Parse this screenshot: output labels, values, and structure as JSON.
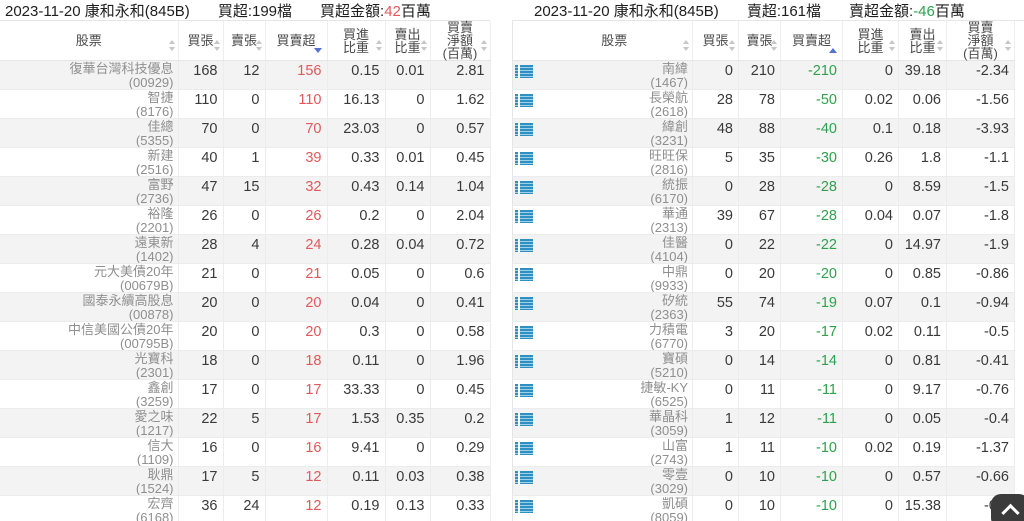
{
  "columns": {
    "stock": "股票",
    "buy": "買張",
    "sell": "賣張",
    "net": "買賣超",
    "buy_ratio": "買進\n比重",
    "sell_ratio": "賣出\n比重",
    "net_amt": "買賣\n淨額\n(百萬)"
  },
  "panels": {
    "left": {
      "title": {
        "date_branch": "2023-11-20 康和永和(845B)",
        "count": "買超:199檔",
        "amount_label": "買超金額:",
        "amount_value": "42",
        "amount_unit": "百萬"
      },
      "sort": {
        "column": "買賣超",
        "direction": "desc"
      },
      "rows": [
        {
          "name": "復華台灣科技優息",
          "code": "(00929)",
          "buy": "168",
          "sell": "12",
          "net": "156",
          "buy_ratio": "0.15",
          "sell_ratio": "0.01",
          "net_amt": "2.81"
        },
        {
          "name": "智捷",
          "code": "(8176)",
          "buy": "110",
          "sell": "0",
          "net": "110",
          "buy_ratio": "16.13",
          "sell_ratio": "0",
          "net_amt": "1.62"
        },
        {
          "name": "佳總",
          "code": "(5355)",
          "buy": "70",
          "sell": "0",
          "net": "70",
          "buy_ratio": "23.03",
          "sell_ratio": "0",
          "net_amt": "0.57"
        },
        {
          "name": "新建",
          "code": "(2516)",
          "buy": "40",
          "sell": "1",
          "net": "39",
          "buy_ratio": "0.33",
          "sell_ratio": "0.01",
          "net_amt": "0.45"
        },
        {
          "name": "富野",
          "code": "(2736)",
          "buy": "47",
          "sell": "15",
          "net": "32",
          "buy_ratio": "0.43",
          "sell_ratio": "0.14",
          "net_amt": "1.04"
        },
        {
          "name": "裕隆",
          "code": "(2201)",
          "buy": "26",
          "sell": "0",
          "net": "26",
          "buy_ratio": "0.2",
          "sell_ratio": "0",
          "net_amt": "2.04"
        },
        {
          "name": "遠東新",
          "code": "(1402)",
          "buy": "28",
          "sell": "4",
          "net": "24",
          "buy_ratio": "0.28",
          "sell_ratio": "0.04",
          "net_amt": "0.72"
        },
        {
          "name": "元大美債20年",
          "code": "(00679B)",
          "buy": "21",
          "sell": "0",
          "net": "21",
          "buy_ratio": "0.05",
          "sell_ratio": "0",
          "net_amt": "0.6"
        },
        {
          "name": "國泰永續高股息",
          "code": "(00878)",
          "buy": "20",
          "sell": "0",
          "net": "20",
          "buy_ratio": "0.04",
          "sell_ratio": "0",
          "net_amt": "0.41"
        },
        {
          "name": "中信美國公債20年",
          "code": "(00795B)",
          "buy": "20",
          "sell": "0",
          "net": "20",
          "buy_ratio": "0.3",
          "sell_ratio": "0",
          "net_amt": "0.58"
        },
        {
          "name": "光寶科",
          "code": "(2301)",
          "buy": "18",
          "sell": "0",
          "net": "18",
          "buy_ratio": "0.11",
          "sell_ratio": "0",
          "net_amt": "1.96"
        },
        {
          "name": "鑫創",
          "code": "(3259)",
          "buy": "17",
          "sell": "0",
          "net": "17",
          "buy_ratio": "33.33",
          "sell_ratio": "0",
          "net_amt": "0.45"
        },
        {
          "name": "愛之味",
          "code": "(1217)",
          "buy": "22",
          "sell": "5",
          "net": "17",
          "buy_ratio": "1.53",
          "sell_ratio": "0.35",
          "net_amt": "0.2"
        },
        {
          "name": "信大",
          "code": "(1109)",
          "buy": "16",
          "sell": "0",
          "net": "16",
          "buy_ratio": "9.41",
          "sell_ratio": "0",
          "net_amt": "0.29"
        },
        {
          "name": "耿鼎",
          "code": "(1524)",
          "buy": "17",
          "sell": "5",
          "net": "12",
          "buy_ratio": "0.11",
          "sell_ratio": "0.03",
          "net_amt": "0.38"
        },
        {
          "name": "宏齊",
          "code": "(6168)",
          "buy": "36",
          "sell": "24",
          "net": "12",
          "buy_ratio": "0.19",
          "sell_ratio": "0.13",
          "net_amt": "0.33"
        }
      ]
    },
    "right": {
      "title": {
        "date_branch": "2023-11-20 康和永和(845B)",
        "count": "賣超:161檔",
        "amount_label": "賣超金額:",
        "amount_value": "-46",
        "amount_unit": "百萬"
      },
      "sort": {
        "column": "買賣超",
        "direction": "asc"
      },
      "rows": [
        {
          "name": "南緯",
          "code": "(1467)",
          "buy": "0",
          "sell": "210",
          "net": "-210",
          "buy_ratio": "0",
          "sell_ratio": "39.18",
          "net_amt": "-2.34"
        },
        {
          "name": "長榮航",
          "code": "(2618)",
          "buy": "28",
          "sell": "78",
          "net": "-50",
          "buy_ratio": "0.02",
          "sell_ratio": "0.06",
          "net_amt": "-1.56"
        },
        {
          "name": "緯創",
          "code": "(3231)",
          "buy": "48",
          "sell": "88",
          "net": "-40",
          "buy_ratio": "0.1",
          "sell_ratio": "0.18",
          "net_amt": "-3.93"
        },
        {
          "name": "旺旺保",
          "code": "(2816)",
          "buy": "5",
          "sell": "35",
          "net": "-30",
          "buy_ratio": "0.26",
          "sell_ratio": "1.8",
          "net_amt": "-1.1"
        },
        {
          "name": "統振",
          "code": "(6170)",
          "buy": "0",
          "sell": "28",
          "net": "-28",
          "buy_ratio": "0",
          "sell_ratio": "8.59",
          "net_amt": "-1.5"
        },
        {
          "name": "華通",
          "code": "(2313)",
          "buy": "39",
          "sell": "67",
          "net": "-28",
          "buy_ratio": "0.04",
          "sell_ratio": "0.07",
          "net_amt": "-1.8"
        },
        {
          "name": "佳醫",
          "code": "(4104)",
          "buy": "0",
          "sell": "22",
          "net": "-22",
          "buy_ratio": "0",
          "sell_ratio": "14.97",
          "net_amt": "-1.9"
        },
        {
          "name": "中鼎",
          "code": "(9933)",
          "buy": "0",
          "sell": "20",
          "net": "-20",
          "buy_ratio": "0",
          "sell_ratio": "0.85",
          "net_amt": "-0.86"
        },
        {
          "name": "矽統",
          "code": "(2363)",
          "buy": "55",
          "sell": "74",
          "net": "-19",
          "buy_ratio": "0.07",
          "sell_ratio": "0.1",
          "net_amt": "-0.94"
        },
        {
          "name": "力積電",
          "code": "(6770)",
          "buy": "3",
          "sell": "20",
          "net": "-17",
          "buy_ratio": "0.02",
          "sell_ratio": "0.11",
          "net_amt": "-0.5"
        },
        {
          "name": "寶碩",
          "code": "(5210)",
          "buy": "0",
          "sell": "14",
          "net": "-14",
          "buy_ratio": "0",
          "sell_ratio": "0.81",
          "net_amt": "-0.41"
        },
        {
          "name": "捷敏-KY",
          "code": "(6525)",
          "buy": "0",
          "sell": "11",
          "net": "-11",
          "buy_ratio": "0",
          "sell_ratio": "9.17",
          "net_amt": "-0.76"
        },
        {
          "name": "華晶科",
          "code": "(3059)",
          "buy": "1",
          "sell": "12",
          "net": "-11",
          "buy_ratio": "0",
          "sell_ratio": "0.05",
          "net_amt": "-0.4"
        },
        {
          "name": "山富",
          "code": "(2743)",
          "buy": "1",
          "sell": "11",
          "net": "-10",
          "buy_ratio": "0.02",
          "sell_ratio": "0.19",
          "net_amt": "-1.37"
        },
        {
          "name": "零壹",
          "code": "(3029)",
          "buy": "0",
          "sell": "10",
          "net": "-10",
          "buy_ratio": "0",
          "sell_ratio": "0.57",
          "net_amt": "-0.66"
        },
        {
          "name": "凱碩",
          "code": "(8059)",
          "buy": "0",
          "sell": "10",
          "net": "-10",
          "buy_ratio": "0",
          "sell_ratio": "15.38",
          "net_amt": "-0.6"
        }
      ]
    }
  },
  "icons": {
    "row_icon": "list-icon",
    "scroll_button_icon": "chevron-up-icon"
  },
  "colors": {
    "positive_red": "#e3585a",
    "negative_green": "#2fa14d",
    "sort_active_blue": "#5472d3",
    "list_icon_blue": "#2e8fc0",
    "row_stripe": "#f3f3f3"
  }
}
